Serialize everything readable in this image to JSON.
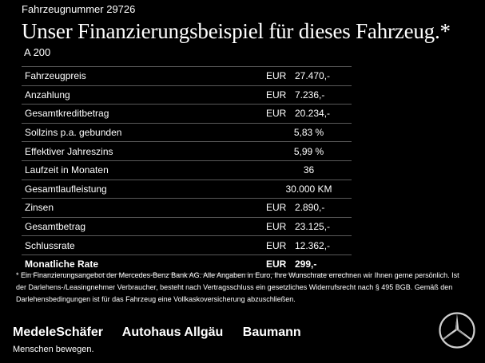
{
  "vehicle_number": "Fahrzeugnummer 29726",
  "headline": "Unser Finanzierungsbeispiel für dieses Fahrzeug.*",
  "model": "A 200",
  "rows": [
    {
      "label": "Fahrzeugpreis",
      "currency": "EUR",
      "value": "27.470,-"
    },
    {
      "label": "Anzahlung",
      "currency": "EUR",
      "value": "7.236,-"
    },
    {
      "label": "Gesamtkreditbetrag",
      "currency": "EUR",
      "value": "20.234,-"
    },
    {
      "label": "Sollzins p.a. gebunden",
      "currency": "",
      "value": "5,83 %"
    },
    {
      "label": "Effektiver Jahreszins",
      "currency": "",
      "value": "5,99 %"
    },
    {
      "label": "Laufzeit in Monaten",
      "currency": "",
      "value": "36"
    },
    {
      "label": "Gesamtlaufleistung",
      "currency": "",
      "value": "30.000 KM"
    },
    {
      "label": "Zinsen",
      "currency": "EUR",
      "value": "2.890,-"
    },
    {
      "label": "Gesamtbetrag",
      "currency": "EUR",
      "value": "23.125,-"
    },
    {
      "label": "Schlussrate",
      "currency": "EUR",
      "value": "12.362,-"
    },
    {
      "label": "Monatliche Rate",
      "currency": "EUR",
      "value": "299,-"
    }
  ],
  "footnote": "* Ein Finanzierungsangebot der Mercedes-Benz Bank AG. Alle Angaben in Euro, Ihre Wunschrate errechnen wir Ihnen gerne persönlich. Ist der Darlehens-/Leasingnehmer Verbraucher, besteht nach Vertragsschluss ein gesetzliches Widerrufsrecht nach § 495 BGB. Gemäß den Darlehensbedingungen ist für das Fahrzeug eine Vollkaskoversicherung abzuschließen.",
  "dealers": [
    "MedeleSchäfer",
    "Autohaus Allgäu",
    "Baumann"
  ],
  "slogan": "Menschen bewegen.",
  "logo_icon": "mercedes-star-icon"
}
